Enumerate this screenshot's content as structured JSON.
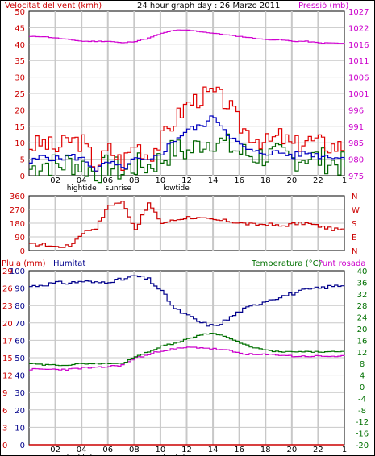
{
  "header": {
    "wind_speed_label": "Velocitat del vent (kmh)",
    "graph_title": "24 hour graph day : 26 Marzo 2011",
    "pressure_label": "Pressió (mb)"
  },
  "bottom_panel": {
    "rain_label": "Pluja (mm)",
    "humidity_label": "Humitat",
    "temperature_label": "Temperatura (°C)",
    "dewpoint_label": "Punt rosada"
  },
  "x_axis": {
    "hour_labels": [
      "02",
      "04",
      "06",
      "08",
      "10",
      "12",
      "14",
      "16",
      "18",
      "20",
      "22"
    ],
    "markers": [
      "hightide",
      "sunrise",
      "lowtide"
    ]
  },
  "colors": {
    "frame": "#000000",
    "grid": "#c8c8c8",
    "wind_gust": "#e00000",
    "wind_avg": "#0000c0",
    "wind_direction_bars": "#006400",
    "pressure": "#d000d0",
    "wind_dir_line": "#cc0000",
    "humidity": "#00008b",
    "temperature": "#007000",
    "dewpoint": "#cc00cc",
    "rain": "#cc0000",
    "left_axis_text": "#cc0000",
    "humidity_text": "#00008b",
    "temp_axis_text": "#007000",
    "pressure_axis_text": "#cc00cc",
    "dir_axis_text": "#cc0000"
  },
  "chart_data": [
    {
      "type": "line",
      "panel": "wind_pressure",
      "y_left_ticks": [
        0,
        5,
        10,
        15,
        20,
        25,
        30,
        35,
        40,
        45,
        50
      ],
      "ylim_left": [
        0,
        50
      ],
      "y_right_ticks": [
        975,
        980,
        985,
        991,
        996,
        1001,
        1006,
        1011,
        1016,
        1022,
        1027
      ],
      "ylim_right": [
        975,
        1027
      ],
      "x": [
        0,
        1,
        2,
        3,
        4,
        5,
        6,
        7,
        8,
        9,
        10,
        11,
        12,
        13,
        14,
        15,
        16,
        17,
        18,
        19,
        20,
        21,
        22,
        23,
        24
      ],
      "series": [
        {
          "axis": "right",
          "values": [
            1019,
            1019,
            1018.5,
            1018,
            1017.5,
            1017.5,
            1017.5,
            1017,
            1017.5,
            1018.5,
            1020,
            1021,
            1021,
            1020.5,
            1020,
            1019.5,
            1019,
            1018.5,
            1018,
            1018,
            1017.5,
            1017.5,
            1017,
            1017,
            1016.8
          ]
        },
        {
          "axis": "left",
          "values": [
            9,
            10,
            8,
            11,
            10,
            3,
            8,
            4,
            10,
            6,
            11,
            17,
            22,
            24,
            25,
            22,
            15,
            12,
            10,
            12,
            9,
            11,
            10,
            9,
            9
          ]
        },
        {
          "axis": "left",
          "values": [
            4,
            6,
            5,
            6,
            5,
            2,
            4,
            2,
            5,
            4,
            7,
            11,
            14,
            15,
            18,
            13,
            9,
            7,
            7,
            7,
            6,
            7,
            6,
            6,
            5
          ]
        },
        {
          "axis": "left",
          "values": [
            2,
            4,
            3,
            4,
            3,
            1,
            3,
            1,
            3,
            3,
            5,
            8,
            7,
            10,
            11,
            9,
            7,
            6,
            6,
            6,
            5,
            6,
            5,
            4,
            3
          ]
        }
      ]
    },
    {
      "type": "line",
      "panel": "wind_direction",
      "y_left_ticks": [
        0,
        90,
        180,
        270,
        360
      ],
      "ylim": [
        0,
        360
      ],
      "y_right_ticks": [
        "N",
        "W",
        "S",
        "E",
        "N"
      ],
      "x": [
        0,
        1,
        2,
        3,
        4,
        5,
        6,
        7,
        8,
        9,
        10,
        11,
        12,
        13,
        14,
        15,
        16,
        17,
        18,
        19,
        20,
        21,
        22,
        23,
        24
      ],
      "series": [
        {
          "values": [
            40,
            40,
            25,
            30,
            120,
            150,
            300,
            320,
            140,
            310,
            180,
            200,
            220,
            210,
            200,
            195,
            180,
            170,
            175,
            160,
            175,
            180,
            160,
            140,
            135
          ]
        }
      ]
    },
    {
      "type": "line",
      "panel": "temp_hum_rain",
      "y_left_ticks": [
        0,
        10,
        20,
        30,
        40,
        50,
        60,
        70,
        80,
        90,
        100
      ],
      "y_rain_ticks": [
        0,
        3,
        6,
        9,
        12,
        15,
        17,
        20,
        23,
        26,
        29
      ],
      "y_right_ticks": [
        -20,
        -16,
        -12,
        -8,
        -4,
        0,
        4,
        8,
        12,
        16,
        20,
        24,
        28,
        32,
        36,
        40
      ],
      "ylim_left": [
        0,
        100
      ],
      "ylim_right": [
        -20,
        40
      ],
      "x": [
        0,
        1,
        2,
        3,
        4,
        5,
        6,
        7,
        8,
        9,
        10,
        11,
        12,
        13,
        14,
        15,
        16,
        17,
        18,
        19,
        20,
        21,
        22,
        23,
        24
      ],
      "series": [
        {
          "axis": "left",
          "values": [
            91,
            92,
            93,
            93,
            94,
            93,
            94,
            95,
            97,
            95,
            88,
            78,
            74,
            70,
            68,
            72,
            77,
            80,
            83,
            85,
            87,
            89,
            90,
            91,
            92
          ]
        },
        {
          "axis": "right",
          "values": [
            8,
            7.5,
            7.5,
            7.5,
            8,
            8,
            8,
            8,
            10.5,
            12,
            14,
            15,
            16.5,
            18,
            18.5,
            17,
            15,
            13.5,
            12.5,
            12,
            12,
            12,
            12,
            12,
            12
          ]
        },
        {
          "axis": "right",
          "values": [
            6,
            6,
            6,
            6,
            6.5,
            6.5,
            7,
            7.5,
            10,
            11,
            12.5,
            13,
            13.5,
            13.5,
            13,
            12.5,
            11.5,
            11,
            11,
            11,
            10.5,
            10.5,
            10.5,
            10.5,
            10.5
          ]
        },
        {
          "axis": "rain",
          "values": [
            0,
            0,
            0,
            0,
            0,
            0,
            0,
            0,
            0,
            0,
            0,
            0,
            0,
            0,
            0,
            0,
            0,
            0,
            0,
            0,
            0,
            0,
            0,
            0,
            0
          ]
        }
      ]
    }
  ]
}
